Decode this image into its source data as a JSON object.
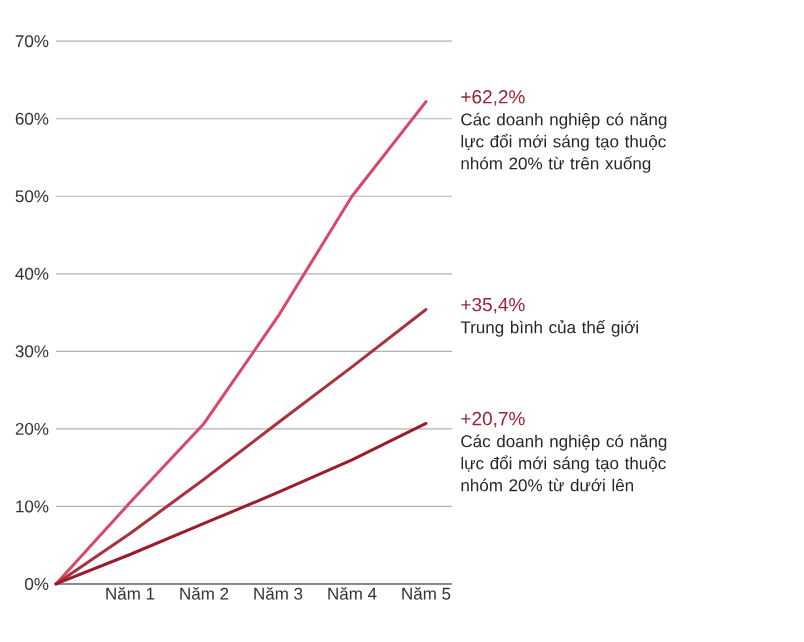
{
  "chart_data": {
    "type": "line",
    "categories": [
      null,
      "Năm 1",
      "Năm 2",
      "Năm 3",
      "Năm 4",
      "Năm 5"
    ],
    "ylim": [
      0,
      70
    ],
    "yticks": [
      {
        "value": 0,
        "label": "0%"
      },
      {
        "value": 10,
        "label": "10%"
      },
      {
        "value": 20,
        "label": "20%"
      },
      {
        "value": 30,
        "label": "30%"
      },
      {
        "value": 40,
        "label": "40%"
      },
      {
        "value": 50,
        "label": "50%"
      },
      {
        "value": 60,
        "label": "60%"
      },
      {
        "value": 70,
        "label": "70%"
      }
    ],
    "series": [
      {
        "name": "Các doanh nghiệp có năng lực đổi mới sáng tạo thuộc nhóm 20% từ trên xuống",
        "color": "#d9476a",
        "values": [
          0,
          10.5,
          20.7,
          34.5,
          50,
          62.2
        ],
        "value_labels": [
          null,
          null,
          null,
          null,
          null,
          "+62,2%"
        ]
      },
      {
        "name": "Trung bình của thế giới",
        "color": "#a8323f",
        "values": [
          0,
          6.5,
          13.5,
          20.8,
          28,
          35.4
        ],
        "value_labels": [
          null,
          null,
          null,
          null,
          null,
          "+35,4%"
        ]
      },
      {
        "name": "Các doanh nghiệp có năng lực đổi mới sáng tạo thuộc nhóm 20% từ dưới lên",
        "color": "#9b1c2a",
        "values": [
          0,
          3.8,
          7.8,
          11.8,
          16,
          20.7
        ],
        "value_labels": [
          null,
          null,
          null,
          null,
          null,
          "+20,7%"
        ]
      }
    ],
    "grid": "y",
    "legend": false,
    "marker": "none",
    "line_style": "solid"
  }
}
